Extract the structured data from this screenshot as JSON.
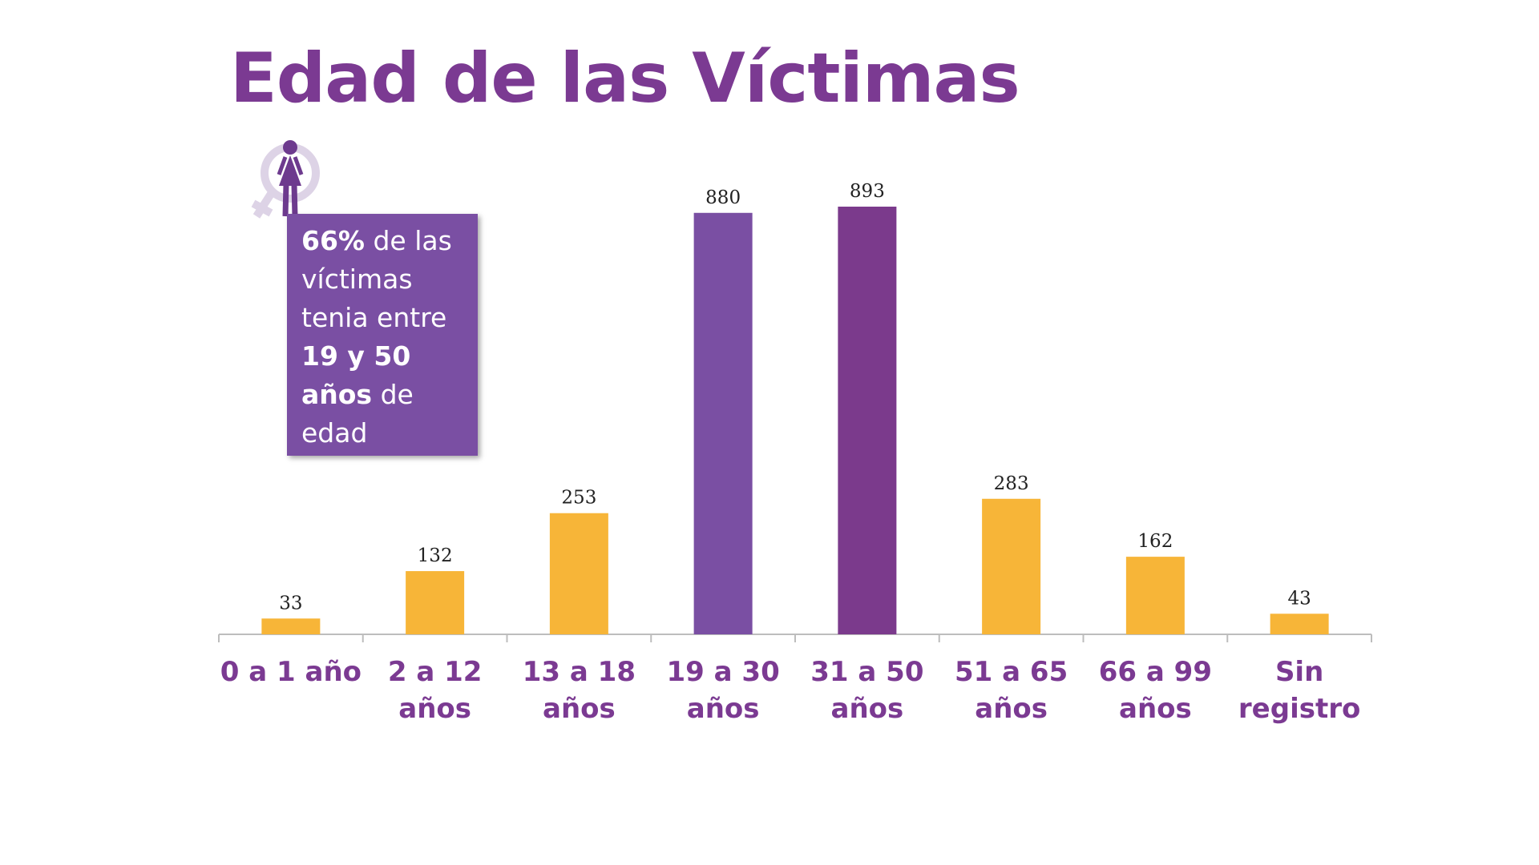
{
  "title": "Edad de las Víctimas",
  "callout": {
    "percent": "66%",
    "text_1": " de las víctimas tenia entre ",
    "range": "19 y 50 años",
    "text_2": " de edad",
    "icon": "female-symbol-woman-icon"
  },
  "colors": {
    "title": "#7b3a92",
    "bar_default": "#f7b538",
    "bar_highlight_1": "#7a4fa3",
    "bar_highlight_2": "#7b3a8c",
    "callout_bg": "#7a4fa3"
  },
  "chart_data": {
    "type": "bar",
    "title": "Edad de las Víctimas",
    "categories": [
      [
        "0 a 1 año"
      ],
      [
        "2 a 12",
        "años"
      ],
      [
        "13 a 18",
        "años"
      ],
      [
        "19 a 30",
        "años"
      ],
      [
        "31 a 50",
        "años"
      ],
      [
        "51 a 65",
        "años"
      ],
      [
        "66 a 99",
        "años"
      ],
      [
        "Sin",
        "registro"
      ]
    ],
    "values": [
      33,
      132,
      253,
      880,
      893,
      283,
      162,
      43
    ],
    "highlight": [
      false,
      false,
      false,
      true,
      true,
      false,
      false,
      false
    ],
    "ylim": [
      0,
      893
    ],
    "grid": false,
    "legend": "none"
  }
}
